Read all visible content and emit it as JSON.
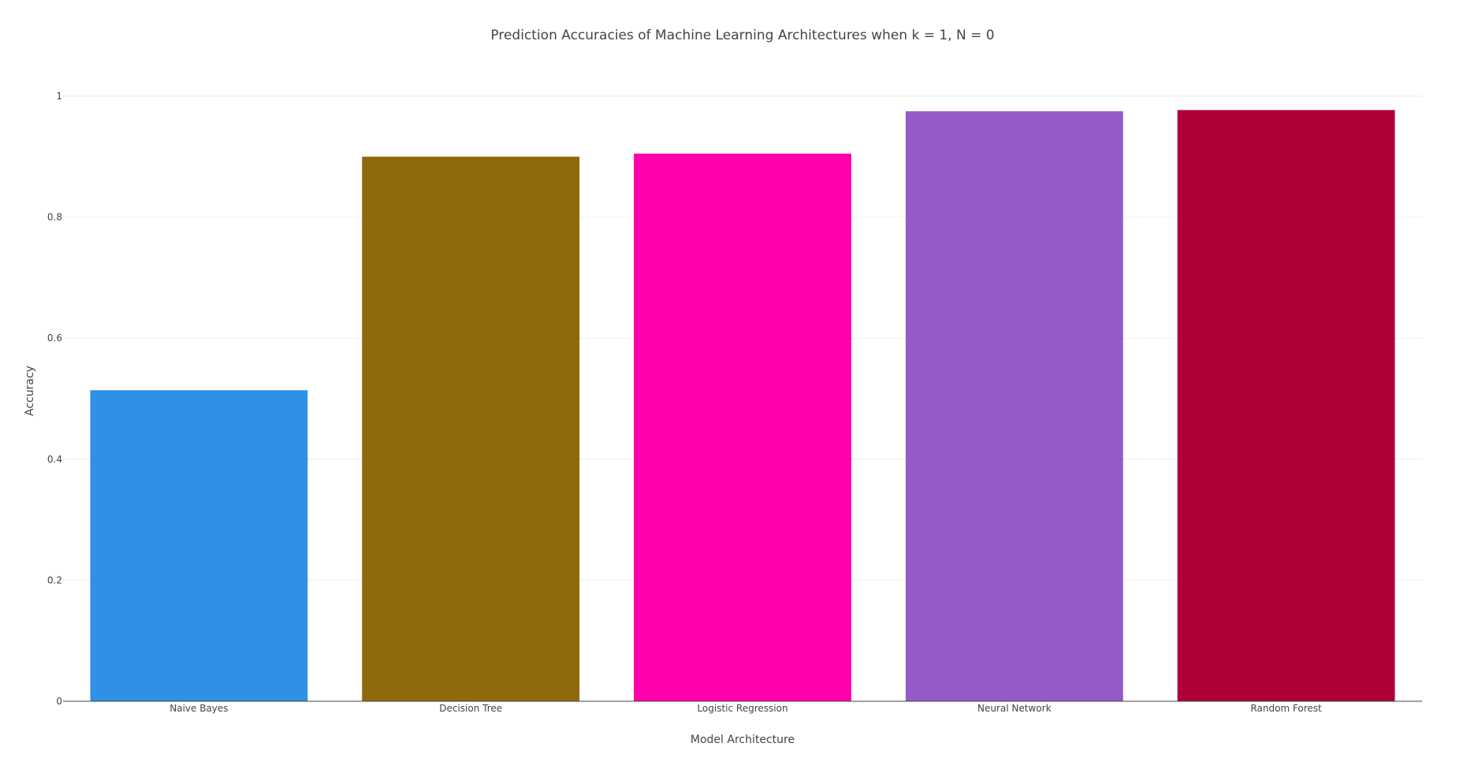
{
  "chart_data": {
    "type": "bar",
    "title": "Prediction Accuracies of Machine Learning Architectures when k = 1, N = 0",
    "xlabel": "Model Architecture",
    "ylabel": "Accuracy",
    "categories": [
      "Naive Bayes",
      "Decision Tree",
      "Logistic Regression",
      "Neural Network",
      "Random Forest"
    ],
    "values": [
      0.514,
      0.9,
      0.905,
      0.975,
      0.977
    ],
    "colors": [
      "#2E91E5",
      "#8F6A0A",
      "#FF00AA",
      "#9659C8",
      "#AE0036"
    ],
    "ylim": [
      0,
      1
    ],
    "yticks": [
      "0",
      "0.2",
      "0.4",
      "0.6",
      "0.8",
      "1"
    ],
    "grid": true,
    "legend": "none"
  }
}
